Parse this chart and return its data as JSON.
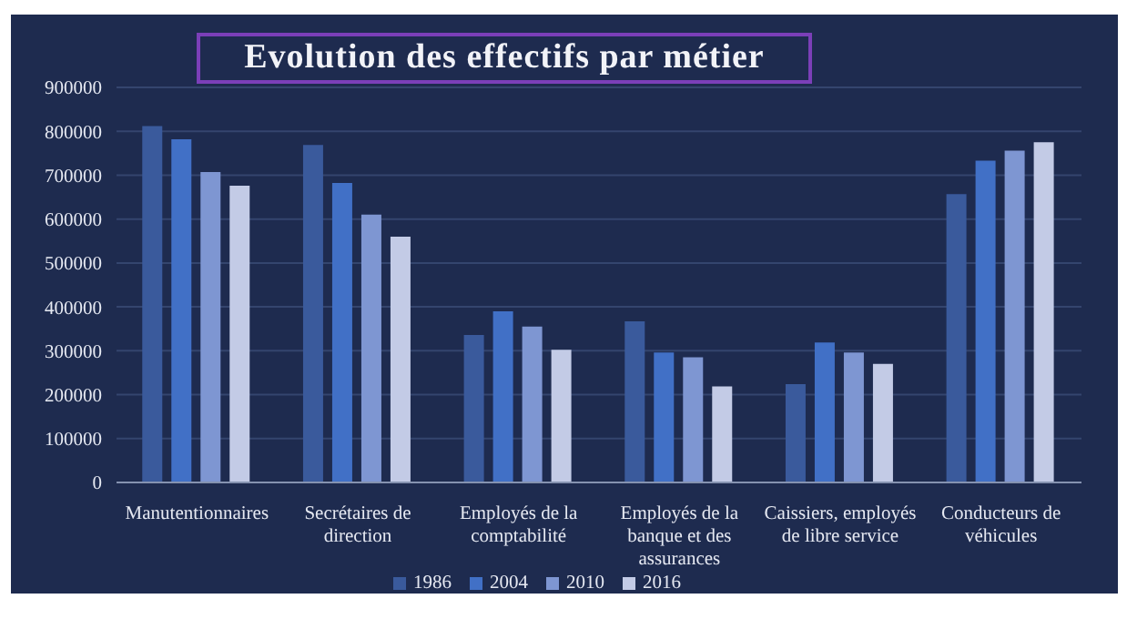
{
  "chart_data": {
    "type": "bar",
    "title": "Evolution des effectifs par métier",
    "categories": [
      "Manutentionnaires",
      "Secrétaires de direction",
      "Employés de la comptabilité",
      "Employés de la banque et des assurances",
      "Caissiers, employés de libre service",
      "Conducteurs de véhicules"
    ],
    "series": [
      {
        "name": "1986",
        "color": "#3a5a9c",
        "values": [
          812000,
          769000,
          336000,
          367000,
          224000,
          657000
        ]
      },
      {
        "name": "2004",
        "color": "#4170c6",
        "values": [
          782000,
          682000,
          390000,
          296000,
          319000,
          733000
        ]
      },
      {
        "name": "2010",
        "color": "#7e96d2",
        "values": [
          707000,
          610000,
          355000,
          285000,
          296000,
          756000
        ]
      },
      {
        "name": "2016",
        "color": "#c3cbe6",
        "values": [
          676000,
          560000,
          302000,
          219000,
          270000,
          775000
        ]
      }
    ],
    "ylim": [
      0,
      900000
    ],
    "yticks": [
      0,
      100000,
      200000,
      300000,
      400000,
      500000,
      600000,
      700000,
      800000,
      900000
    ],
    "grid": "y",
    "legend": "bottom"
  }
}
